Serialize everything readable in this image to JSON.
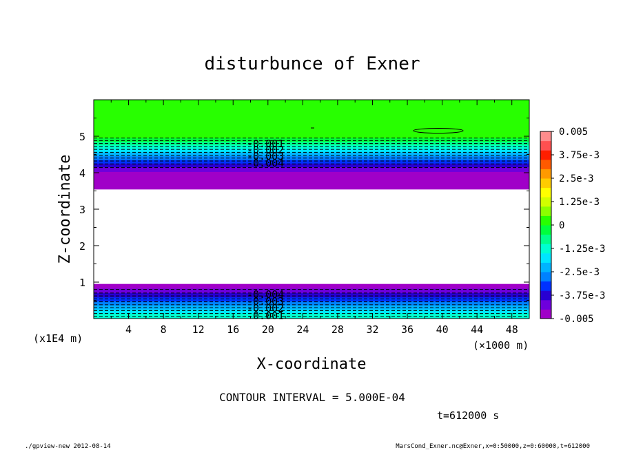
{
  "chart_data": {
    "type": "contour",
    "title": "disturbunce of Exner",
    "xlabel": "X-coordinate",
    "ylabel": "Z-coordinate",
    "x_unit": "(×1000 m)",
    "y_unit": "(x1E4 m)",
    "xlim": [
      0,
      50
    ],
    "ylim": [
      0,
      6
    ],
    "x_ticks": [
      "4",
      "8",
      "12",
      "16",
      "20",
      "24",
      "28",
      "32",
      "36",
      "40",
      "44",
      "48"
    ],
    "y_ticks": [
      "1",
      "2",
      "3",
      "4",
      "5"
    ],
    "contour_interval_text": "CONTOUR INTERVAL = 5.000E-04",
    "time_text": "t=612000 s",
    "colorbar": {
      "labels": [
        "0.005",
        "3.75e-3",
        "2.5e-3",
        "1.25e-3",
        "0",
        "-1.25e-3",
        "-2.5e-3",
        "-3.75e-3",
        "-0.005"
      ],
      "colors": [
        "#a000c8",
        "#6e00dc",
        "#2800d2",
        "#0032ff",
        "#0082ff",
        "#00b4ff",
        "#00e6ff",
        "#00ffd2",
        "#00ff8c",
        "#00ff3c",
        "#28ff00",
        "#8cff00",
        "#d2ff00",
        "#ffff00",
        "#ffcc00",
        "#ff9a00",
        "#ff5a00",
        "#ff1e00",
        "#ff5050",
        "#ff8c8c"
      ]
    },
    "contour_labels_upper": [
      "-0.001",
      "-0.002",
      "-0.003",
      "-0.004"
    ],
    "contour_labels_lower": [
      "-0.004",
      "-0.003",
      "-0.002",
      "-0.001"
    ],
    "upper_band": [
      {
        "z": [
          6.0,
          4.95
        ],
        "color": "#28ff00"
      },
      {
        "z": [
          4.95,
          4.85
        ],
        "color": "#00ff3c"
      },
      {
        "z": [
          4.85,
          4.75
        ],
        "color": "#00ff8c"
      },
      {
        "z": [
          4.75,
          4.65
        ],
        "color": "#00ffd2"
      },
      {
        "z": [
          4.65,
          4.55
        ],
        "color": "#00e6ff"
      },
      {
        "z": [
          4.55,
          4.45
        ],
        "color": "#00b4ff"
      },
      {
        "z": [
          4.45,
          4.35
        ],
        "color": "#0082ff"
      },
      {
        "z": [
          4.35,
          4.25
        ],
        "color": "#0032ff"
      },
      {
        "z": [
          4.25,
          4.15
        ],
        "color": "#2800d2"
      },
      {
        "z": [
          4.15,
          4.02
        ],
        "color": "#6e00dc"
      },
      {
        "z": [
          4.02,
          3.55
        ],
        "color": "#a000c8"
      }
    ],
    "lower_band": [
      {
        "z": [
          0.95,
          0.82
        ],
        "color": "#a000c8"
      },
      {
        "z": [
          0.82,
          0.7
        ],
        "color": "#6e00dc"
      },
      {
        "z": [
          0.7,
          0.58
        ],
        "color": "#2800d2"
      },
      {
        "z": [
          0.58,
          0.47
        ],
        "color": "#0032ff"
      },
      {
        "z": [
          0.47,
          0.36
        ],
        "color": "#0082ff"
      },
      {
        "z": [
          0.36,
          0.25
        ],
        "color": "#00b4ff"
      },
      {
        "z": [
          0.25,
          0.14
        ],
        "color": "#00e6ff"
      },
      {
        "z": [
          0.14,
          0.0
        ],
        "color": "#00ffd2"
      }
    ],
    "dashed_contour_z": [
      4.95,
      4.88,
      4.8,
      4.72,
      4.64,
      4.56,
      4.48,
      4.4,
      4.32,
      4.24,
      4.14,
      0.8,
      0.7,
      0.62,
      0.54,
      0.46,
      0.38,
      0.3,
      0.22,
      0.14,
      0.06
    ]
  },
  "footer": {
    "left": "./gpview-new  2012-08-14",
    "right": "MarsCond_Exner.nc@Exner,x=0:50000,z=0:60000,t=612000"
  }
}
